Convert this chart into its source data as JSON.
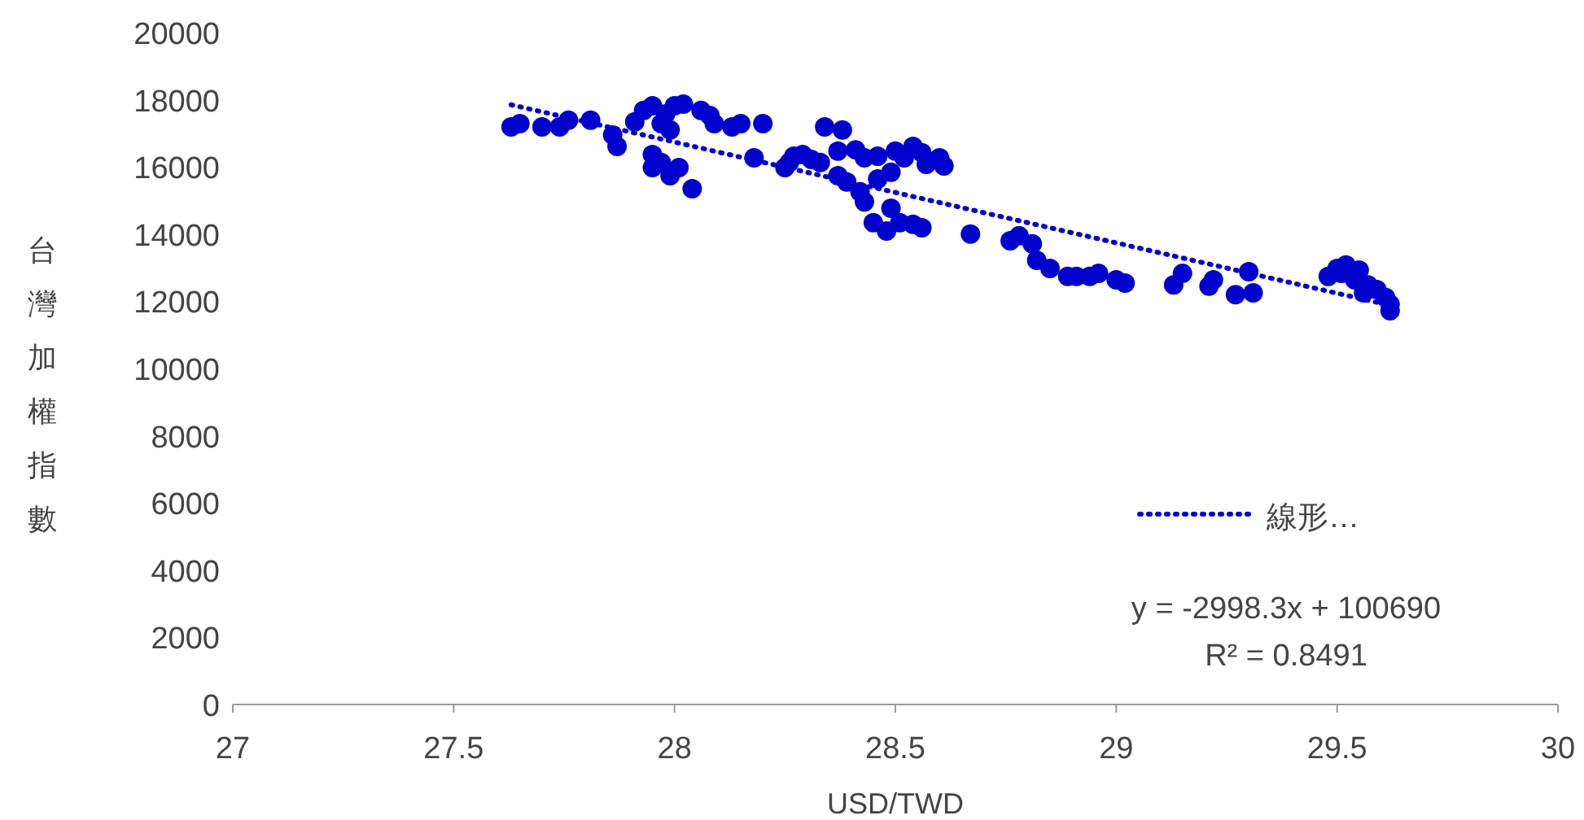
{
  "chart_data": {
    "type": "scatter",
    "xlabel": "USD/TWD",
    "ylabel": "台灣加權指數",
    "xlim": [
      27,
      30
    ],
    "ylim": [
      0,
      20000
    ],
    "xticks": [
      27,
      27.5,
      28,
      28.5,
      29,
      29.5,
      30
    ],
    "yticks": [
      0,
      2000,
      4000,
      6000,
      8000,
      10000,
      12000,
      14000,
      16000,
      18000,
      20000
    ],
    "legend": "bottom right",
    "annotations": [
      "y = -2998.3x + 100690",
      "R² = 0.8491"
    ],
    "series": [
      {
        "color": "#0000cc",
        "marker": "circle",
        "x": [
          27.63,
          27.65,
          27.7,
          27.74,
          27.76,
          27.81,
          27.86,
          27.87,
          27.91,
          27.93,
          27.95,
          27.97,
          27.98,
          28.0,
          28.02,
          27.99,
          27.95,
          27.97,
          27.95,
          27.99,
          28.01,
          28.04,
          28.06,
          28.08,
          28.09,
          28.13,
          28.15,
          28.2,
          28.18,
          28.27,
          28.26,
          28.29,
          28.31,
          28.25,
          28.33,
          28.37,
          28.41,
          28.43,
          28.46,
          28.5,
          28.52,
          28.56,
          28.54,
          28.57,
          28.37,
          28.39,
          28.42,
          28.43,
          28.46,
          28.49,
          28.45,
          28.48,
          28.51,
          28.54,
          28.56,
          28.49,
          28.6,
          28.61,
          28.67,
          28.76,
          28.78,
          28.81,
          28.82,
          28.85,
          28.89,
          28.91,
          28.94,
          28.96,
          29.0,
          29.02,
          29.13,
          29.15,
          29.21,
          29.22,
          29.27,
          29.3,
          29.31,
          29.48,
          29.5,
          29.51,
          29.52,
          29.54,
          29.55,
          29.56,
          29.57,
          29.59,
          29.61,
          29.62,
          29.62,
          28.34,
          28.38
        ],
        "values": [
          17190,
          17290,
          17190,
          17190,
          17390,
          17390,
          16950,
          16610,
          17340,
          17680,
          17820,
          17290,
          17580,
          17820,
          17870,
          17100,
          16370,
          16130,
          15980,
          15740,
          15980,
          15350,
          17680,
          17530,
          17290,
          17190,
          17290,
          17290,
          16270,
          16320,
          16130,
          16370,
          16220,
          15980,
          16130,
          16470,
          16510,
          16270,
          16320,
          16470,
          16270,
          16420,
          16610,
          16080,
          15740,
          15550,
          15260,
          14960,
          15640,
          15840,
          14340,
          14090,
          14340,
          14290,
          14190,
          14770,
          16270,
          16030,
          14000,
          13800,
          13950,
          13710,
          13220,
          12980,
          12740,
          12740,
          12740,
          12830,
          12640,
          12540,
          12490,
          12830,
          12450,
          12640,
          12200,
          12880,
          12250,
          12740,
          12980,
          12830,
          13080,
          12640,
          12930,
          12250,
          12490,
          12350,
          12110,
          11910,
          11720,
          17190,
          17100
        ]
      },
      {
        "type": "line",
        "name": "線形…",
        "color": "#0000cc",
        "line_style": "dotted",
        "x": [
          27.63,
          29.62
        ],
        "values": [
          17850,
          11880
        ]
      }
    ]
  }
}
